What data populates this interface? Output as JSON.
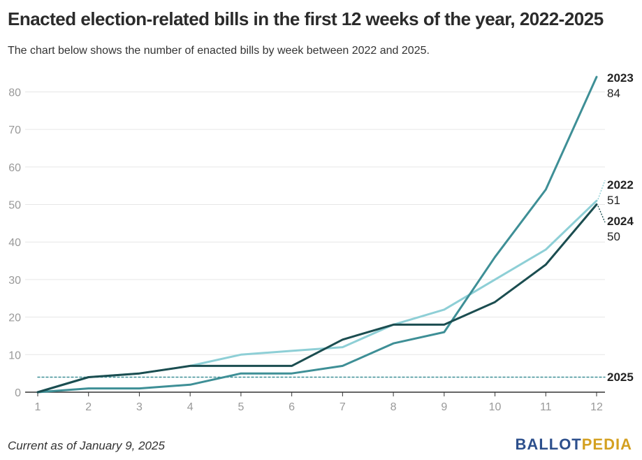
{
  "header": {
    "title": "Enacted election-related bills in the first 12 weeks of the year, 2022-2025",
    "subtitle": "The chart below shows the number of enacted bills by week between 2022 and 2025."
  },
  "footer": {
    "note": "Current as of January 9, 2025",
    "logo_part1": "BALLOT",
    "logo_part2": "PEDIA",
    "logo_color1": "#2c4f8c",
    "logo_color2": "#d4a020"
  },
  "chart_data": {
    "type": "line",
    "title": "Enacted election-related bills in the first 12 weeks of the year, 2022-2025",
    "subtitle": "The chart below shows the number of enacted bills by week between 2022 and 2025.",
    "xlabel": "",
    "ylabel": "",
    "x": [
      1,
      2,
      3,
      4,
      5,
      6,
      7,
      8,
      9,
      10,
      11,
      12
    ],
    "x_ticks": [
      "1",
      "2",
      "3",
      "4",
      "5",
      "6",
      "7",
      "8",
      "9",
      "10",
      "11",
      "12"
    ],
    "ylim": [
      0,
      84
    ],
    "y_ticks": [
      0,
      10,
      20,
      30,
      40,
      50,
      60,
      70,
      80
    ],
    "grid": true,
    "legend": "direct-labels-right",
    "series": [
      {
        "name": "2022",
        "color": "#8ecfd6",
        "dashed": false,
        "values": [
          0,
          4,
          5,
          7,
          10,
          11,
          12,
          18,
          22,
          30,
          38,
          51
        ],
        "end_value": "51"
      },
      {
        "name": "2023",
        "color": "#3e8f96",
        "dashed": false,
        "values": [
          0,
          1,
          1,
          2,
          5,
          5,
          7,
          13,
          16,
          36,
          54,
          84
        ],
        "end_value": "84"
      },
      {
        "name": "2024",
        "color": "#1b4d50",
        "dashed": false,
        "values": [
          0,
          4,
          5,
          7,
          7,
          7,
          14,
          18,
          18,
          24,
          34,
          50
        ],
        "end_value": "50"
      },
      {
        "name": "2025",
        "color": "#3e8f96",
        "dashed": true,
        "values": [
          4,
          4,
          4,
          4,
          4,
          4,
          4,
          4,
          4,
          4,
          4,
          4
        ],
        "end_value": ""
      }
    ]
  }
}
